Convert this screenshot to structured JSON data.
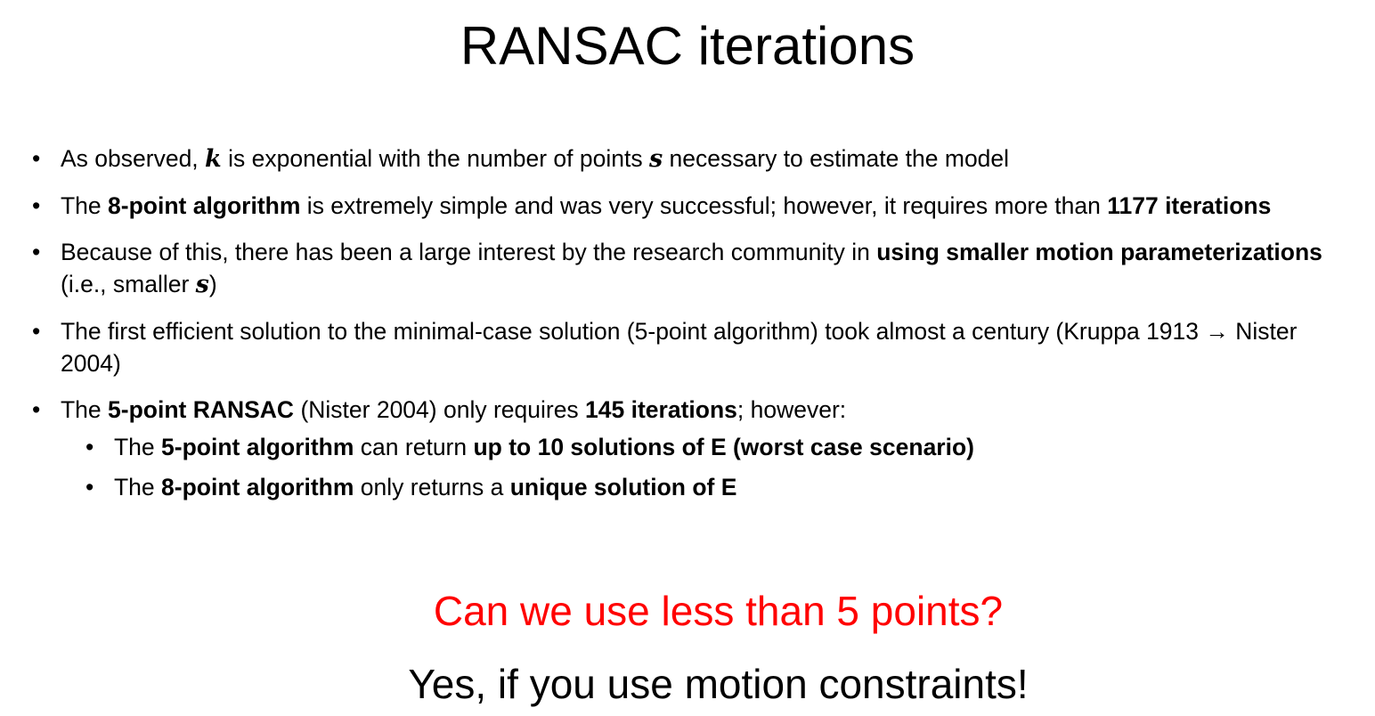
{
  "slide": {
    "title": "RANSAC iterations",
    "bullets": [
      {
        "parts": [
          {
            "text": "As observed, "
          },
          {
            "text": "k",
            "style": "var"
          },
          {
            "text": " is exponential with the number of points "
          },
          {
            "text": "s",
            "style": "var"
          },
          {
            "text": " necessary to estimate the model"
          }
        ]
      },
      {
        "parts": [
          {
            "text": "The "
          },
          {
            "text": "8-point algorithm",
            "style": "bold"
          },
          {
            "text": " is extremely simple and was very successful; however, it requires more than "
          },
          {
            "text": "1177 iterations",
            "style": "bold"
          }
        ]
      },
      {
        "parts": [
          {
            "text": "Because of this, there has been a large interest by the research community in "
          },
          {
            "text": "using smaller motion parameterizations",
            "style": "bold"
          },
          {
            "text": " (i.e., smaller "
          },
          {
            "text": "s",
            "style": "var"
          },
          {
            "text": ")"
          }
        ]
      },
      {
        "parts": [
          {
            "text": "The first efficient solution to the minimal-case solution (5-point algorithm) took almost a century (Kruppa 1913 → Nister 2004)"
          }
        ]
      },
      {
        "parts": [
          {
            "text": "The "
          },
          {
            "text": "5-point RANSAC",
            "style": "bold"
          },
          {
            "text": " (Nister 2004) only requires "
          },
          {
            "text": "145 iterations",
            "style": "bold"
          },
          {
            "text": "; however:"
          }
        ],
        "sub": [
          {
            "parts": [
              {
                "text": "The "
              },
              {
                "text": "5-point algorithm",
                "style": "bold"
              },
              {
                "text": " can return "
              },
              {
                "text": "up to 10 solutions of E (worst case scenario)",
                "style": "bold"
              }
            ]
          },
          {
            "parts": [
              {
                "text": "The "
              },
              {
                "text": "8-point algorithm",
                "style": "bold"
              },
              {
                "text": " only returns a "
              },
              {
                "text": "unique solution of E",
                "style": "bold"
              }
            ]
          }
        ]
      }
    ],
    "question": "Can we use less than 5 points?",
    "answer": "Yes, if you use motion constraints!"
  },
  "colors": {
    "text": "#000000",
    "question": "#ff0000",
    "background": "#ffffff"
  }
}
